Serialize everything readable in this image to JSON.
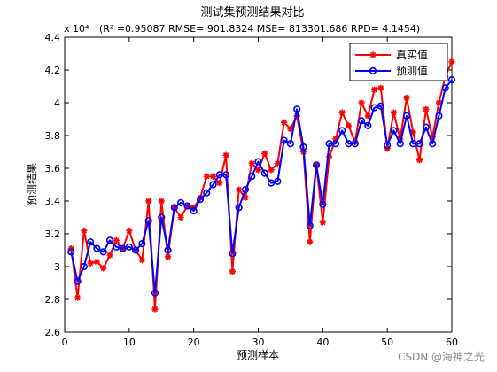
{
  "chart_data": {
    "type": "line",
    "title": "测试集预测结果对比",
    "subtitle": "(R² =0.95087 RMSE= 901.8324 MSE= 813301.686 RPD= 4.1454)",
    "exponent_label": "x 10⁴",
    "xlabel": "",
    "ylabel": "预测结果",
    "xlabel_text": "预测样本",
    "xlim": [
      0,
      60
    ],
    "ylim": [
      2.6,
      4.4
    ],
    "x_ticks": [
      0,
      10,
      20,
      30,
      40,
      50,
      60
    ],
    "y_ticks": [
      2.6,
      2.8,
      3.0,
      3.2,
      3.4,
      3.6,
      3.8,
      4.0,
      4.2,
      4.4
    ],
    "y_tick_labels": [
      "2.6",
      "2.8",
      "3",
      "3.2",
      "3.4",
      "3.6",
      "3.8",
      "4",
      "4.2",
      "4.4"
    ],
    "legend_position": "top-right",
    "x": [
      1,
      2,
      3,
      4,
      5,
      6,
      7,
      8,
      9,
      10,
      11,
      12,
      13,
      14,
      15,
      16,
      17,
      18,
      19,
      20,
      21,
      22,
      23,
      24,
      25,
      26,
      27,
      28,
      29,
      30,
      31,
      32,
      33,
      34,
      35,
      36,
      37,
      38,
      39,
      40,
      41,
      42,
      43,
      44,
      45,
      46,
      47,
      48,
      49,
      50,
      51,
      52,
      53,
      54,
      55,
      56,
      57,
      58,
      59,
      60
    ],
    "series": [
      {
        "name": "真实值",
        "color": "#ff0000",
        "marker": "star",
        "values": [
          3.11,
          2.81,
          3.22,
          3.02,
          3.03,
          2.99,
          3.07,
          3.16,
          3.11,
          3.22,
          3.1,
          3.04,
          3.4,
          2.74,
          3.4,
          3.06,
          3.36,
          3.3,
          3.37,
          3.36,
          3.42,
          3.55,
          3.55,
          3.51,
          3.68,
          2.97,
          3.47,
          3.42,
          3.63,
          3.59,
          3.69,
          3.59,
          3.63,
          3.88,
          3.84,
          3.92,
          3.7,
          3.15,
          3.62,
          3.27,
          3.67,
          3.78,
          3.94,
          3.86,
          3.76,
          4.0,
          3.92,
          4.08,
          4.09,
          3.72,
          3.94,
          3.78,
          4.03,
          3.82,
          3.65,
          3.96,
          3.79,
          4.0,
          4.16,
          4.25
        ]
      },
      {
        "name": "预测值",
        "color": "#0000ff",
        "marker": "circle",
        "values": [
          3.09,
          2.91,
          3.0,
          3.15,
          3.11,
          3.09,
          3.16,
          3.12,
          3.11,
          3.12,
          3.1,
          3.14,
          3.28,
          2.84,
          3.3,
          3.1,
          3.36,
          3.39,
          3.37,
          3.34,
          3.41,
          3.45,
          3.5,
          3.56,
          3.56,
          3.08,
          3.36,
          3.47,
          3.55,
          3.64,
          3.57,
          3.51,
          3.52,
          3.77,
          3.75,
          3.96,
          3.73,
          3.25,
          3.62,
          3.38,
          3.75,
          3.75,
          3.83,
          3.75,
          3.75,
          3.89,
          3.86,
          3.97,
          3.98,
          3.74,
          3.83,
          3.75,
          3.92,
          3.75,
          3.75,
          3.85,
          3.75,
          3.92,
          4.09,
          4.14
        ]
      }
    ]
  },
  "watermark": "CSDN @海神之光"
}
